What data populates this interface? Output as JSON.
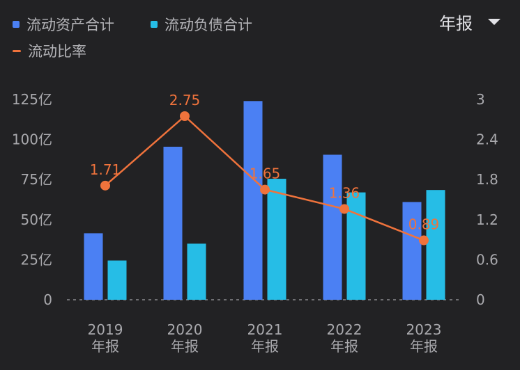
{
  "header": {
    "period_label": "年报"
  },
  "colors": {
    "background": "#222224",
    "current_assets": "#4b80f3",
    "current_liabilities": "#26bde6",
    "current_ratio": "#f0733c"
  },
  "chart_data": {
    "type": "bar",
    "categories": [
      [
        "2019",
        "年报"
      ],
      [
        "2020",
        "年报"
      ],
      [
        "2021",
        "年报"
      ],
      [
        "2022",
        "年报"
      ],
      [
        "2023",
        "年报"
      ]
    ],
    "series": [
      {
        "name": "流动资产合计",
        "type": "bar",
        "axis": "left",
        "values": [
          41.5,
          95.5,
          124,
          90.5,
          61
        ]
      },
      {
        "name": "流动负债合计",
        "type": "bar",
        "axis": "left",
        "values": [
          24.5,
          35,
          75.5,
          67,
          68.5
        ]
      },
      {
        "name": "流动比率",
        "type": "line",
        "axis": "right",
        "values": [
          1.71,
          2.75,
          1.65,
          1.36,
          0.89
        ]
      }
    ],
    "y_left": {
      "ylim": [
        0,
        125
      ],
      "ticks": [
        "0",
        "25亿",
        "50亿",
        "75亿",
        "100亿",
        "125亿"
      ]
    },
    "y_right": {
      "ylim": [
        0,
        3
      ],
      "ticks": [
        "0",
        "0.6",
        "1.2",
        "1.8",
        "2.4",
        "3"
      ]
    },
    "data_labels": [
      "1.71",
      "2.75",
      "1.65",
      "1.36",
      "0.89"
    ],
    "legend": "top-left",
    "grid": false,
    "baseline": "dashed"
  }
}
